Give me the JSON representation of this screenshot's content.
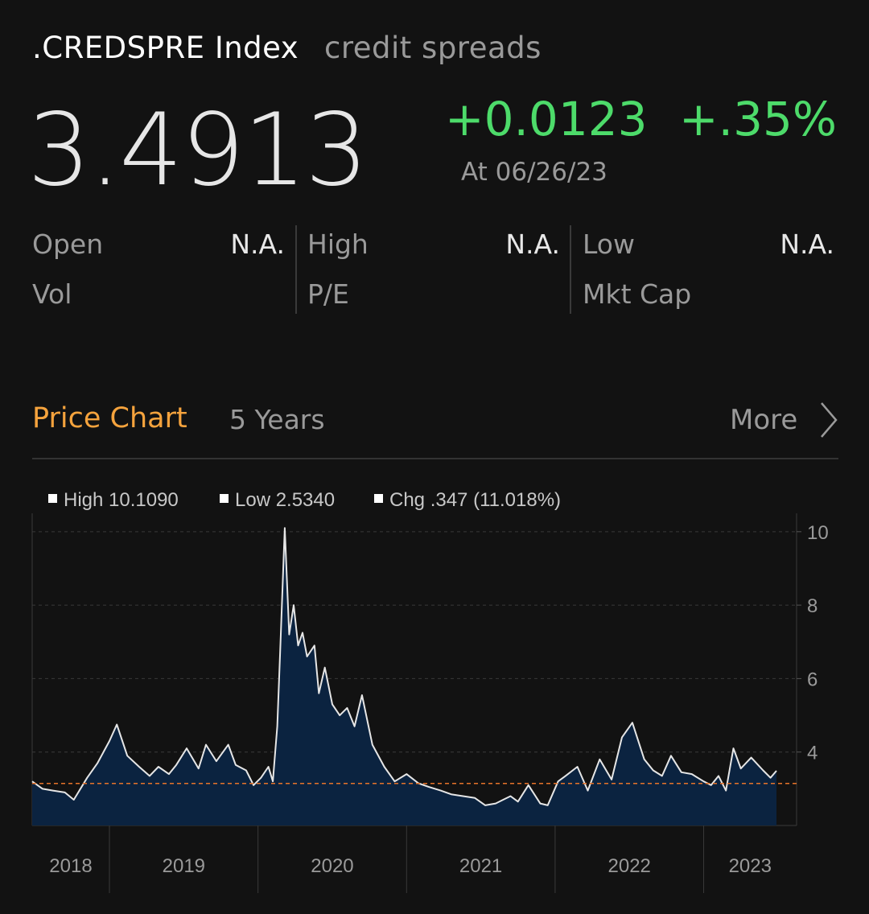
{
  "header": {
    "ticker": ".CREDSPRE Index",
    "description": "credit spreads",
    "price": "3.4913",
    "change": "+0.0123",
    "change_pct": "+.35%",
    "as_of": "At 06/26/23",
    "positive_color": "#4ddb6a"
  },
  "stats": {
    "open_label": "Open",
    "open_value": "N.A.",
    "high_label": "High",
    "high_value": "N.A.",
    "low_label": "Low",
    "low_value": "N.A.",
    "vol_label": "Vol",
    "pe_label": "P/E",
    "mktcap_label": "Mkt Cap"
  },
  "chart_section": {
    "title": "Price Chart",
    "range": "5 Years",
    "more_label": "More",
    "accent_color": "#f5a33d"
  },
  "chart_data": {
    "type": "area",
    "legend": [
      "High 10.1090",
      "Low 2.5340",
      "Chg .347 (11.018%)"
    ],
    "legend_placement": "top-left",
    "x_tick_labels": [
      "2018",
      "2019",
      "2020",
      "2021",
      "2022",
      "2023"
    ],
    "y_ticks": [
      4,
      6,
      8,
      10
    ],
    "y_tick_labels": [
      "4",
      "6",
      "8",
      "10"
    ],
    "ylim": [
      2.0,
      10.5
    ],
    "xlim": [
      2018.48,
      2023.49
    ],
    "grid": "horizontal dashed",
    "y_axis_side": "right",
    "reference_line": 3.144,
    "reference_line_color": "#e8742a",
    "line_color": "#e6e6e6",
    "fill_color": "#0b2340",
    "series": [
      {
        "x": [
          2018.48,
          2018.55,
          2018.62,
          2018.7,
          2018.76,
          2018.85,
          2018.92,
          2019.0,
          2019.05,
          2019.12,
          2019.2,
          2019.27,
          2019.33,
          2019.4,
          2019.45,
          2019.52,
          2019.6,
          2019.65,
          2019.72,
          2019.8,
          2019.85,
          2019.92,
          2019.97,
          2020.02,
          2020.07,
          2020.1,
          2020.13,
          2020.15,
          2020.18,
          2020.21,
          2020.24,
          2020.27,
          2020.3,
          2020.33,
          2020.38,
          2020.41,
          2020.45,
          2020.5,
          2020.55,
          2020.6,
          2020.65,
          2020.7,
          2020.77,
          2020.85,
          2020.92,
          2021.0,
          2021.08,
          2021.15,
          2021.23,
          2021.3,
          2021.38,
          2021.46,
          2021.53,
          2021.6,
          2021.65,
          2021.7,
          2021.75,
          2021.82,
          2021.9,
          2021.95,
          2022.02,
          2022.07,
          2022.15,
          2022.22,
          2022.3,
          2022.38,
          2022.45,
          2022.52,
          2022.6,
          2022.66,
          2022.72,
          2022.78,
          2022.85,
          2022.92,
          2023.0,
          2023.05,
          2023.1,
          2023.15,
          2023.2,
          2023.25,
          2023.32,
          2023.4,
          2023.45,
          2023.49
        ],
        "y": [
          3.2,
          3.0,
          2.95,
          2.9,
          2.7,
          3.3,
          3.7,
          4.3,
          4.75,
          3.9,
          3.6,
          3.35,
          3.6,
          3.4,
          3.65,
          4.1,
          3.55,
          4.2,
          3.75,
          4.2,
          3.65,
          3.5,
          3.1,
          3.3,
          3.6,
          3.2,
          4.7,
          6.8,
          10.1,
          7.2,
          8.0,
          6.9,
          7.25,
          6.6,
          6.9,
          5.6,
          6.3,
          5.3,
          5.0,
          5.2,
          4.7,
          5.55,
          4.2,
          3.6,
          3.2,
          3.4,
          3.15,
          3.05,
          2.95,
          2.85,
          2.8,
          2.75,
          2.55,
          2.6,
          2.7,
          2.8,
          2.65,
          3.1,
          2.6,
          2.55,
          3.2,
          3.35,
          3.6,
          2.95,
          3.8,
          3.25,
          4.4,
          4.8,
          3.8,
          3.5,
          3.35,
          3.9,
          3.45,
          3.4,
          3.2,
          3.1,
          3.35,
          2.95,
          4.1,
          3.55,
          3.85,
          3.5,
          3.3,
          3.49
        ]
      }
    ]
  }
}
